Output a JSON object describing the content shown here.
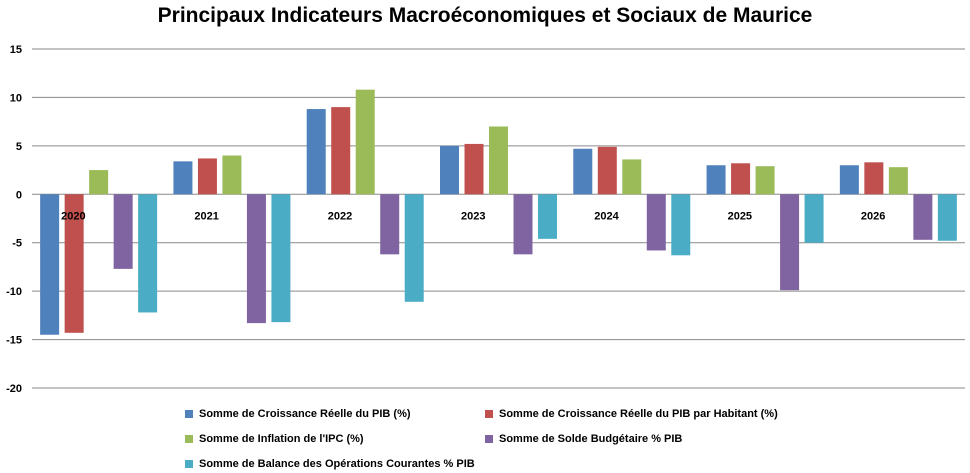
{
  "chart_data": {
    "type": "bar",
    "title": "Principaux Indicateurs Macroéconomiques et Sociaux de Maurice",
    "xlabel": "",
    "ylabel": "",
    "ylim": [
      -20,
      15
    ],
    "yticks": [
      15,
      10,
      5,
      0,
      -5,
      -10,
      -15,
      -20
    ],
    "grid": true,
    "legend_position": "bottom",
    "categories": [
      "2020",
      "2021",
      "2022",
      "2023",
      "2024",
      "2025",
      "2026"
    ],
    "series": [
      {
        "name": "Somme de Croissance  Réelle du PIB (%)",
        "color": "#4F81BD",
        "values": [
          -14.5,
          3.4,
          8.8,
          5.0,
          4.7,
          3.0,
          3.0
        ]
      },
      {
        "name": "Somme de Croissance  Réelle du PIB par Habitant (%)",
        "color": "#C0504D",
        "values": [
          -14.3,
          3.7,
          9.0,
          5.2,
          4.9,
          3.2,
          3.3
        ]
      },
      {
        "name": "Somme de Inflation de l'IPC (%)",
        "color": "#9BBB59",
        "values": [
          2.5,
          4.0,
          10.8,
          7.0,
          3.6,
          2.9,
          2.8
        ]
      },
      {
        "name": "Somme de Solde Budgétaire % PIB",
        "color": "#8064A2",
        "values": [
          -7.7,
          -13.3,
          -6.2,
          -6.2,
          -5.8,
          -9.9,
          -4.7
        ]
      },
      {
        "name": "Somme de Balance  des Opérations Courantes % PIB",
        "color": "#4BACC6",
        "values": [
          -12.2,
          -13.2,
          -11.1,
          -4.6,
          -6.3,
          -5.0,
          -4.8
        ]
      }
    ]
  }
}
